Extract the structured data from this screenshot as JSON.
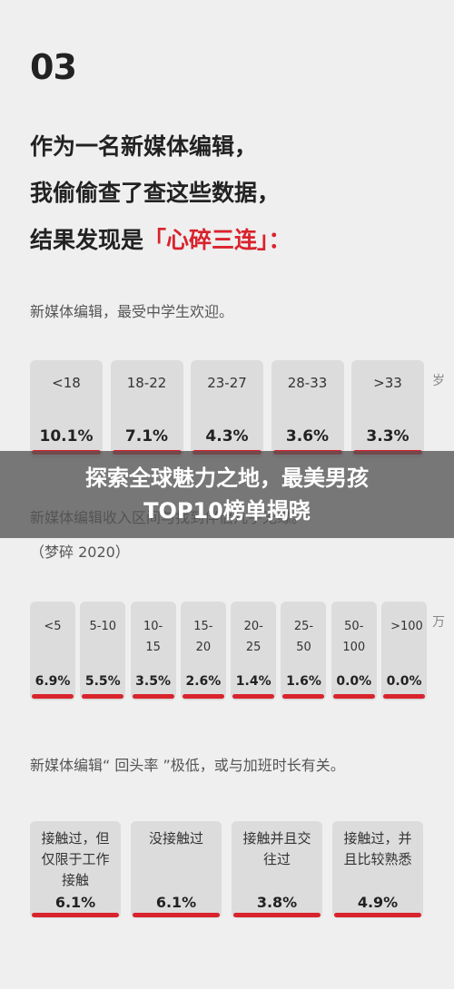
{
  "header": {
    "number": "03",
    "lines": [
      "作为一名新媒体编辑，",
      "我偷偷查了查这些数据，"
    ],
    "line3": "结果发现是",
    "highlight": "「心碎三连」："
  },
  "sections": [
    {
      "subtitle": "新媒体编辑，最受中学生欢迎。",
      "unit": "岁",
      "cards": [
        {
          "label": "<18",
          "value": "10.1%"
        },
        {
          "label": "18-22",
          "value": "7.1%"
        },
        {
          "label": "23-27",
          "value": "4.3%"
        },
        {
          "label": "28-33",
          "value": "3.6%"
        },
        {
          "label": ">33",
          "value": "3.3%"
        }
      ]
    },
    {
      "subtitle": "新媒体编辑收入区间与找到伴侣几乎无缘。",
      "note": "（梦碎 2020）",
      "unit": "万",
      "cards": [
        {
          "label": "<5",
          "value": "6.9%"
        },
        {
          "label": "5-10",
          "value": "5.5%"
        },
        {
          "label": "10-15",
          "value": "3.5%"
        },
        {
          "label": "15-20",
          "value": "2.6%"
        },
        {
          "label": "20-25",
          "value": "1.4%"
        },
        {
          "label": "25-50",
          "value": "1.6%"
        },
        {
          "label": "50-100",
          "value": "0.0%"
        },
        {
          "label": ">100",
          "value": "0.0%"
        }
      ]
    },
    {
      "subtitle": "新媒体编辑“ 回头率 ”极低，或与加班时长有关。",
      "cards": [
        {
          "label": "接触过，但仅限于工作接触",
          "value": "6.1%"
        },
        {
          "label": "没接触过",
          "value": "6.1%"
        },
        {
          "label": "接触并且交往过",
          "value": "3.8%"
        },
        {
          "label": "接触过，并且比较熟悉",
          "value": "4.9%"
        }
      ]
    }
  ],
  "banner": {
    "lines": [
      "探索全球魅力之地，最美男孩",
      "TOP10榜单揭晓"
    ]
  }
}
